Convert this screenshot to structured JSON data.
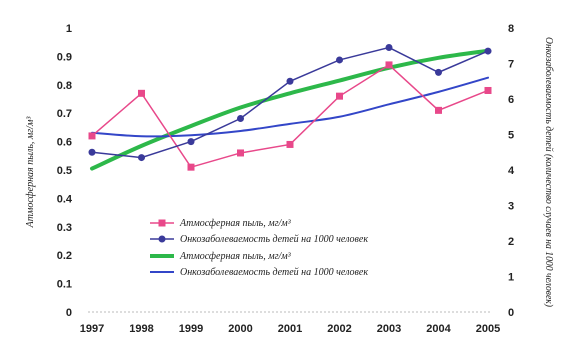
{
  "chart_data": {
    "type": "line",
    "categories": [
      "1997",
      "1998",
      "1999",
      "2000",
      "2001",
      "2002",
      "2003",
      "2004",
      "2005"
    ],
    "ylabel_left": "Атмосферная пыль, мг/м³",
    "ylabel_right": "Онкозаболеваемость детей (количество случаев на 1000 человек)",
    "ylim_left": [
      0,
      1
    ],
    "ylim_right": [
      0,
      8
    ],
    "yticks_left": [
      "0",
      "0.1",
      "0.2",
      "0.3",
      "0.4",
      "0.5",
      "0.6",
      "0.7",
      "0.8",
      "0.9",
      "1"
    ],
    "yticks_right": [
      "0",
      "1",
      "2",
      "3",
      "4",
      "5",
      "6",
      "7",
      "8"
    ],
    "grid": false,
    "legend_placement": "bottom-center",
    "series": [
      {
        "name": "Атмосферная пыль, мг/м³",
        "axis": "left",
        "style": "line-markers",
        "color": "#e8488a",
        "values": [
          0.62,
          0.77,
          0.51,
          0.56,
          0.59,
          0.76,
          0.87,
          0.71,
          0.78
        ]
      },
      {
        "name": "Онкозаболеваемость детей на 1000 человек",
        "axis": "right",
        "style": "line-markers",
        "color": "#3a3a9a",
        "values": [
          4.5,
          4.35,
          4.8,
          5.45,
          6.5,
          7.1,
          7.45,
          6.75,
          7.35
        ]
      },
      {
        "name": "Атмосферная пыль, мг/м³",
        "axis": "left",
        "style": "trend",
        "color": "#2db84a",
        "values": [
          0.505,
          0.585,
          0.655,
          0.72,
          0.77,
          0.815,
          0.86,
          0.895,
          0.92
        ]
      },
      {
        "name": "Онкозаболеваемость детей на 1000 человек",
        "axis": "right",
        "style": "trend",
        "color": "#3346c8",
        "values": [
          5.05,
          4.95,
          4.98,
          5.1,
          5.3,
          5.5,
          5.85,
          6.2,
          6.6
        ]
      }
    ]
  }
}
